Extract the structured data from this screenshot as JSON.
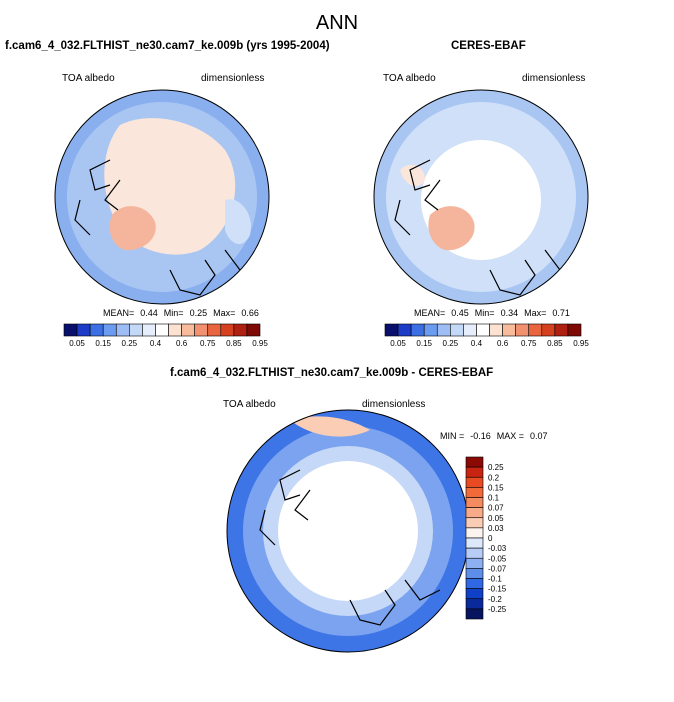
{
  "figure": {
    "title": "ANN"
  },
  "panels": [
    {
      "title": "f.cam6_4_032.FLTHIST_ne30.cam7_ke.009b (yrs 1995-2004)",
      "left_label": "TOA albedo",
      "right_label": "dimensionless",
      "stats": {
        "mean_label": "MEAN=",
        "mean": "0.44",
        "min_label": "Min=",
        "min": "0.25",
        "max_label": "Max=",
        "max": "0.66"
      }
    },
    {
      "title": "CERES-EBAF",
      "left_label": "TOA albedo",
      "right_label": "dimensionless",
      "stats": {
        "mean_label": "MEAN=",
        "mean": "0.45",
        "min_label": "Min=",
        "min": "0.34",
        "max_label": "Max=",
        "max": "0.71"
      }
    },
    {
      "title": "f.cam6_4_032.FLTHIST_ne30.cam7_ke.009b - CERES-EBAF",
      "left_label": "TOA albedo",
      "right_label": "dimensionless",
      "stats": {
        "min_label": "MIN =",
        "min": "-0.16",
        "max_label": "MAX =",
        "max": "0.07"
      }
    }
  ],
  "colorbars": {
    "absolute": {
      "labels": [
        "0.05",
        "0.15",
        "0.25",
        "0.4",
        "0.6",
        "0.75",
        "0.85",
        "0.95"
      ],
      "colors": [
        "#08106b",
        "#1c3bc6",
        "#3b6fe3",
        "#6c9cef",
        "#9dbdf4",
        "#c4d8f8",
        "#e6eefc",
        "#ffffff",
        "#fde2d2",
        "#f8bb9c",
        "#f29170",
        "#e8653f",
        "#d5401f",
        "#b02010",
        "#7f0a05"
      ]
    },
    "difference": {
      "labels": [
        "0.25",
        "0.2",
        "0.15",
        "0.1",
        "0.07",
        "0.05",
        "0.03",
        "0",
        "-0.03",
        "-0.05",
        "-0.07",
        "-0.1",
        "-0.15",
        "-0.2",
        "-0.25"
      ],
      "colors": [
        "#8b0a05",
        "#c82412",
        "#e84a22",
        "#f2693a",
        "#f68a60",
        "#f8ab88",
        "#fbcdb5",
        "#fdf3ee",
        "#dde8fb",
        "#b7cdf6",
        "#8cb0f1",
        "#5d8fea",
        "#2f68e2",
        "#1040c8",
        "#0a2a9c",
        "#07155f"
      ]
    }
  },
  "map_colors": {
    "ocean_light": "#cfe0f8",
    "ocean_mid": "#a9c6f3",
    "ocean_blue": "#86acf0",
    "ice_pink": "#fbe6dc",
    "greenland_pink": "#f4b59c",
    "diff_blue": "#3e75e6",
    "diff_midblue": "#7ba3ef",
    "diff_pale": "#c6d8f7"
  }
}
